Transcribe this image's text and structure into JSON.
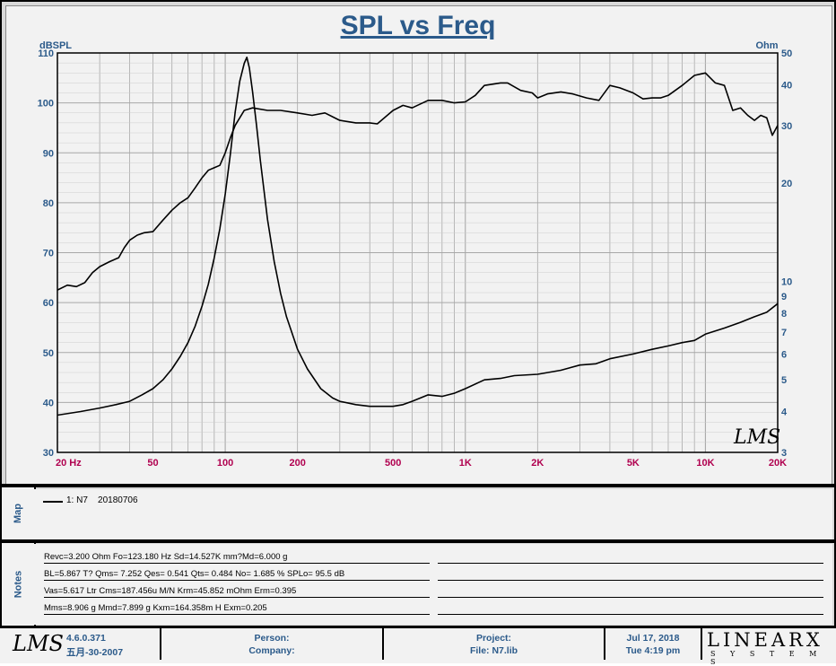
{
  "chart_data": {
    "type": "line",
    "title": "SPL vs Freq",
    "x_scale": "log",
    "xlim": [
      20,
      20000
    ],
    "x_ticks": [
      20,
      50,
      100,
      200,
      500,
      1000,
      2000,
      5000,
      10000,
      20000
    ],
    "x_tick_labels": [
      "20  Hz",
      "50",
      "100",
      "200",
      "500",
      "1K",
      "2K",
      "5K",
      "10K",
      "20K"
    ],
    "left_axis": {
      "label": "dBSPL",
      "ylim": [
        30,
        110
      ],
      "ticks": [
        30,
        40,
        50,
        60,
        70,
        80,
        90,
        100,
        110
      ]
    },
    "right_axis": {
      "label": "Ohm",
      "scale": "log",
      "ylim": [
        3,
        50
      ],
      "ticks": [
        3,
        4,
        5,
        6,
        7,
        8,
        9,
        10,
        20,
        30,
        40,
        50
      ],
      "tick_labels": [
        "3",
        "4",
        "5",
        "6",
        "7",
        "8",
        "9",
        "10",
        "20",
        "30",
        "40",
        "50"
      ]
    },
    "grid": true,
    "series": [
      {
        "name": "SPL",
        "axis": "left",
        "unit": "dBSPL",
        "x": [
          20,
          22,
          24,
          26,
          28,
          30,
          33,
          36,
          38,
          40,
          43,
          46,
          50,
          55,
          60,
          65,
          70,
          75,
          80,
          85,
          90,
          95,
          100,
          105,
          110,
          120,
          130,
          150,
          170,
          200,
          230,
          260,
          300,
          350,
          400,
          430,
          500,
          550,
          600,
          700,
          800,
          900,
          1000,
          1100,
          1200,
          1400,
          1500,
          1700,
          1900,
          2000,
          2200,
          2500,
          2800,
          3200,
          3600,
          4000,
          4400,
          5000,
          5500,
          6000,
          6500,
          7000,
          8000,
          9000,
          10000,
          11000,
          12000,
          13000,
          14000,
          15000,
          16000,
          17000,
          18000,
          19000,
          20000
        ],
        "values": [
          62.5,
          63.5,
          63.2,
          64.0,
          66.0,
          67.2,
          68.2,
          69.0,
          71.0,
          72.5,
          73.5,
          74.0,
          74.2,
          76.5,
          78.5,
          80.0,
          81.0,
          83.0,
          85.0,
          86.5,
          87.0,
          87.5,
          90.0,
          93.0,
          95.5,
          98.5,
          99.0,
          98.5,
          98.5,
          98.0,
          97.5,
          98.0,
          96.5,
          96.0,
          96.0,
          95.8,
          98.5,
          99.5,
          99.0,
          100.5,
          100.5,
          100.0,
          100.2,
          101.5,
          103.5,
          104.0,
          104.0,
          102.5,
          102.0,
          101.0,
          101.8,
          102.2,
          101.8,
          101.0,
          100.5,
          103.5,
          103.0,
          102.0,
          100.8,
          101.0,
          101.0,
          101.5,
          103.5,
          105.5,
          106.0,
          104.0,
          103.5,
          98.5,
          99.0,
          97.5,
          96.5,
          97.5,
          97.0,
          93.5,
          95.5
        ]
      },
      {
        "name": "Impedance",
        "axis": "right",
        "unit": "Ohm",
        "x": [
          20,
          25,
          30,
          35,
          40,
          45,
          50,
          55,
          60,
          65,
          70,
          75,
          80,
          85,
          90,
          95,
          100,
          105,
          110,
          115,
          120,
          123,
          126,
          130,
          135,
          140,
          150,
          160,
          170,
          180,
          200,
          220,
          250,
          280,
          300,
          350,
          400,
          450,
          500,
          550,
          600,
          650,
          700,
          800,
          900,
          1000,
          1200,
          1400,
          1600,
          2000,
          2500,
          3000,
          3500,
          4000,
          5000,
          6000,
          7000,
          8000,
          9000,
          10000,
          12000,
          14000,
          16000,
          18000,
          20000
        ],
        "values": [
          3.9,
          4.0,
          4.1,
          4.2,
          4.3,
          4.5,
          4.7,
          5.0,
          5.4,
          5.9,
          6.5,
          7.3,
          8.4,
          9.8,
          11.8,
          14.5,
          18.5,
          24.5,
          33.0,
          41.0,
          46.5,
          48.5,
          45.0,
          38.0,
          30.0,
          23.5,
          15.5,
          11.5,
          9.2,
          7.8,
          6.2,
          5.4,
          4.7,
          4.4,
          4.3,
          4.2,
          4.15,
          4.15,
          4.15,
          4.2,
          4.3,
          4.4,
          4.5,
          4.45,
          4.55,
          4.7,
          5.0,
          5.05,
          5.15,
          5.2,
          5.35,
          5.55,
          5.6,
          5.8,
          6.0,
          6.2,
          6.35,
          6.5,
          6.6,
          6.9,
          7.2,
          7.5,
          7.8,
          8.05,
          8.55
        ]
      }
    ],
    "legend": [
      "1: N7    20180706"
    ],
    "watermark": "LMS"
  },
  "map": {
    "label": "Map",
    "legend_entry": "1: N7    20180706"
  },
  "notes": {
    "label": "Notes",
    "lines": [
      "Revc=3.200 Ohm  Fo=123.180 Hz  Sd=14.527K mm?Md=6.000 g",
      "BL=5.867 T?  Qms= 7.252  Qes= 0.541  Qts= 0.484  No= 1.685 %  SPLo= 95.5 dB",
      "Vas=5.617 Ltr  Cms=187.456u M/N  Krm=45.852 mOhm  Erm=0.395",
      "Mms=8.906 g  Mmd=7.899 g  Kxm=164.358m H  Exm=0.205"
    ]
  },
  "footer": {
    "logo": "LMS",
    "version": "4.6.0.371",
    "version_date": "五月-30-2007",
    "person_label": "Person:",
    "company_label": "Company:",
    "project_label": "Project:",
    "file_label": "File: N7.lib",
    "date": "Jul 17, 2018",
    "time": "Tue  4:19 pm",
    "brand_top": "LINEARX",
    "brand_bottom": "S Y S T E M S"
  },
  "colors": {
    "title": "#2b5a8a",
    "axis_label": "#2b5a8a",
    "x_tick": "#b0004f",
    "grid": "#a8a8a8",
    "trace": "#000000"
  }
}
